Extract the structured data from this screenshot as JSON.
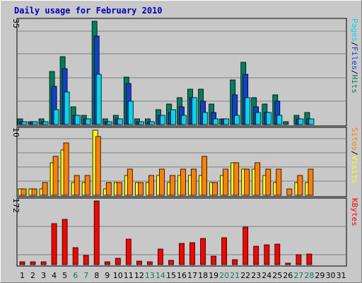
{
  "chart_data": {
    "type": "bar",
    "title": "Daily usage for February 2010",
    "categories": [
      "1",
      "2",
      "3",
      "4",
      "5",
      "6",
      "7",
      "8",
      "9",
      "10",
      "11",
      "12",
      "13",
      "14",
      "15",
      "16",
      "17",
      "18",
      "19",
      "20",
      "21",
      "22",
      "23",
      "24",
      "25",
      "26",
      "27",
      "28",
      "29",
      "30",
      "31"
    ],
    "weekend_days": [
      6,
      7,
      13,
      14,
      20,
      21,
      27,
      28
    ],
    "panels": [
      {
        "scale_label": "35",
        "ylim": [
          0,
          35
        ],
        "legend": [
          "Pages",
          "Files",
          "Hits"
        ],
        "series": [
          {
            "name": "Hits",
            "color": "#00805a",
            "values": [
              2,
              1,
              2,
              18,
              23,
              6,
              3,
              35,
              2,
              3,
              16,
              2,
              2,
              5,
              7,
              9,
              12,
              12,
              7,
              2,
              15,
              21,
              9,
              7,
              10,
              1,
              3,
              4,
              0,
              0,
              0
            ]
          },
          {
            "name": "Files",
            "color": "#1040d0",
            "values": [
              1,
              1,
              1,
              13,
              19,
              3,
              2,
              30,
              1,
              2,
              14,
              1,
              1,
              3,
              4,
              6,
              9,
              8,
              4,
              2,
              10,
              17,
              6,
              4,
              8,
              0,
              2,
              2,
              0,
              0,
              0
            ]
          },
          {
            "name": "Pages",
            "color": "#00d8f0",
            "values": [
              1,
              1,
              1,
              5,
              11,
              3,
              2,
              17,
              1,
              2,
              8,
              1,
              1,
              3,
              5,
              3,
              9,
              4,
              2,
              2,
              3,
              9,
              4,
              4,
              3,
              0,
              2,
              2,
              0,
              0,
              0
            ]
          }
        ]
      },
      {
        "scale_label": "10",
        "ylim": [
          0,
          10
        ],
        "legend": [
          "Sites",
          "Visits"
        ],
        "series": [
          {
            "name": "Visits",
            "color": "#ffff00",
            "values": [
              1,
              1,
              1,
              5,
              7,
              2,
              2,
              10,
              1,
              2,
              3,
              2,
              2,
              3,
              2,
              3,
              3,
              3,
              2,
              3,
              5,
              4,
              4,
              3,
              2,
              0,
              2,
              2,
              0,
              0,
              0
            ]
          },
          {
            "name": "Sites",
            "color": "#ff8000",
            "values": [
              1,
              1,
              2,
              6,
              8,
              3,
              3,
              9,
              2,
              2,
              4,
              2,
              3,
              4,
              3,
              4,
              4,
              6,
              2,
              4,
              5,
              4,
              5,
              4,
              4,
              1,
              3,
              4,
              0,
              0,
              0
            ]
          }
        ]
      },
      {
        "scale_label": "172",
        "ylim": [
          0,
          172
        ],
        "legend": [
          "KBytes"
        ],
        "series": [
          {
            "name": "KBytes",
            "color": "#ff0000",
            "values": [
              8,
              8,
              8,
              110,
              123,
              45,
              25,
              172,
              8,
              18,
              68,
              10,
              8,
              42,
              12,
              58,
              60,
              70,
              22,
              72,
              14,
              102,
              50,
              54,
              56,
              3,
              26,
              29,
              0,
              0,
              0
            ]
          }
        ]
      }
    ]
  }
}
